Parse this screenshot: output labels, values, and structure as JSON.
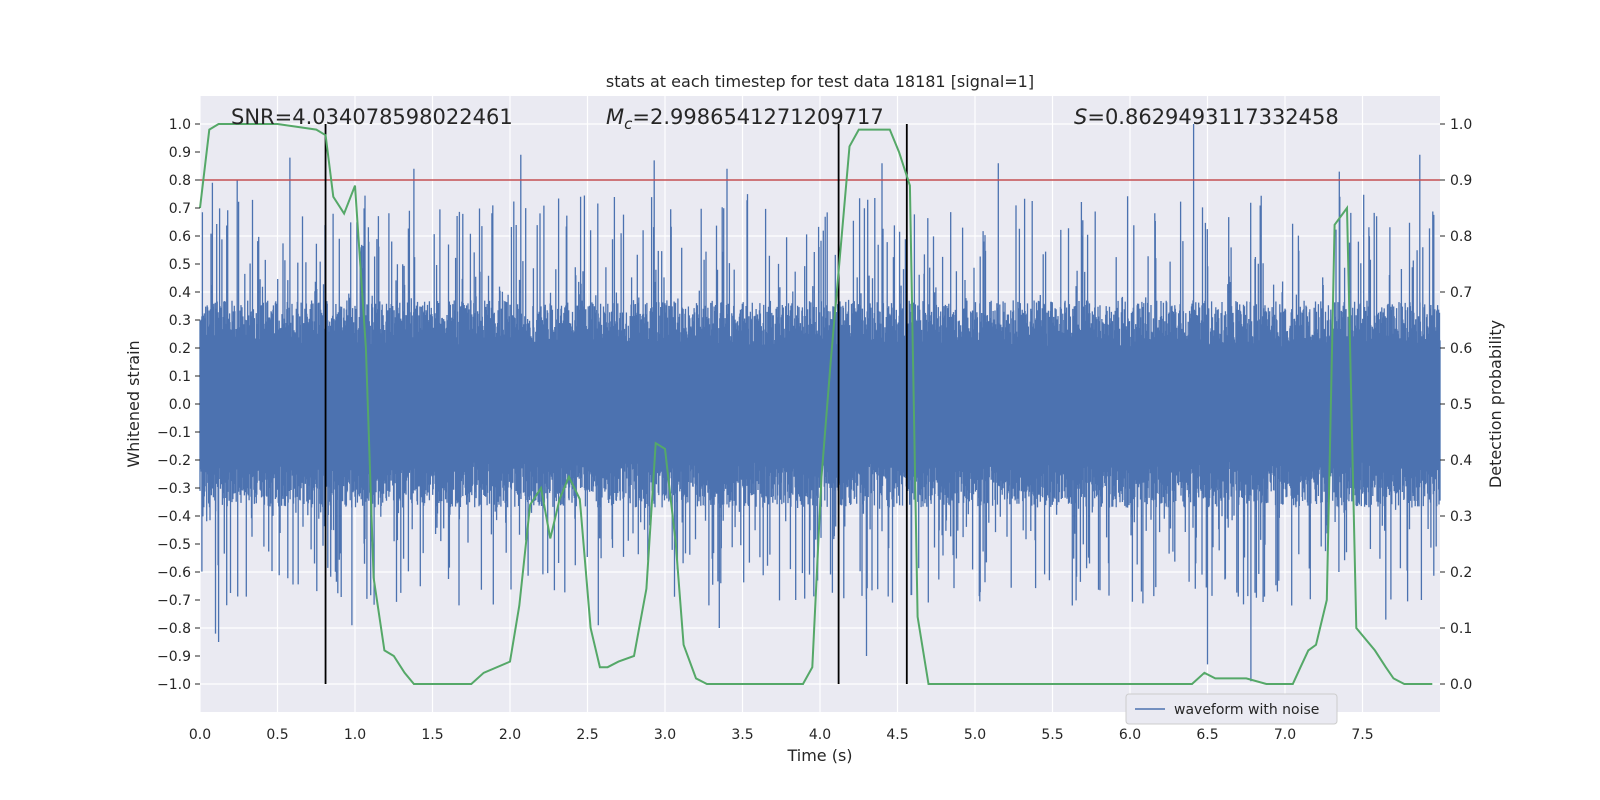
{
  "chart_data": {
    "type": "line",
    "title": "stats at each timestep for test data 18181 [signal=1]",
    "xlabel": "Time (s)",
    "ylabel": "Whitened strain",
    "y2label": "Detection probability",
    "xlim": [
      0.0,
      8.0
    ],
    "ylim": [
      -1.1,
      1.1
    ],
    "y2lim": [
      -0.05,
      1.05
    ],
    "xticks": [
      0.0,
      0.5,
      1.0,
      1.5,
      2.0,
      2.5,
      3.0,
      3.5,
      4.0,
      4.5,
      5.0,
      5.5,
      6.0,
      6.5,
      7.0,
      7.5
    ],
    "yticks": [
      1.0,
      0.9,
      0.8,
      0.7,
      0.6,
      0.5,
      0.4,
      0.3,
      0.2,
      0.1,
      0.0,
      -0.1,
      -0.2,
      -0.3,
      -0.4,
      -0.5,
      -0.6,
      -0.7,
      -0.8,
      -0.9,
      -1.0
    ],
    "y2ticks": [
      1.0,
      0.9,
      0.8,
      0.7,
      0.6,
      0.5,
      0.4,
      0.3,
      0.2,
      0.1,
      0.0
    ],
    "grid": true,
    "legend_position": "bottom-right",
    "annotations": {
      "snr": "SNR=4.034078598022461",
      "mc_symbol": "M",
      "mc_sub": "c",
      "mc_value": "=2.9986541271209717",
      "s_symbol": "S",
      "s_value": "=0.8629493117332458"
    },
    "threshold": {
      "axis": "left",
      "value": 0.8,
      "color": "#c44e52"
    },
    "vertical_lines": [
      0.81,
      4.12,
      4.56
    ],
    "series": [
      {
        "name": "waveform with noise",
        "axis": "left",
        "color": "#4c72b0",
        "kind": "noise_waveform",
        "typical_envelope": [
          -0.37,
          0.37
        ],
        "notable_peaks": [
          {
            "x": 0.58,
            "y": 0.88
          },
          {
            "x": 0.08,
            "y": 0.79
          },
          {
            "x": 0.24,
            "y": 0.8
          },
          {
            "x": 1.38,
            "y": 0.84
          },
          {
            "x": 2.07,
            "y": 0.89
          },
          {
            "x": 2.93,
            "y": 0.87
          },
          {
            "x": 3.4,
            "y": 0.84
          },
          {
            "x": 4.4,
            "y": 0.86
          },
          {
            "x": 5.15,
            "y": 0.86
          },
          {
            "x": 6.41,
            "y": 1.0
          },
          {
            "x": 7.87,
            "y": 0.89
          },
          {
            "x": 7.35,
            "y": 0.83
          },
          {
            "x": 0.1,
            "y": -0.82
          },
          {
            "x": 0.12,
            "y": -0.85
          },
          {
            "x": 0.98,
            "y": -0.79
          },
          {
            "x": 2.57,
            "y": -0.79
          },
          {
            "x": 3.35,
            "y": -0.8
          },
          {
            "x": 4.3,
            "y": -0.9
          },
          {
            "x": 6.5,
            "y": -0.93
          },
          {
            "x": 6.78,
            "y": -0.99
          },
          {
            "x": 7.65,
            "y": -0.77
          }
        ]
      },
      {
        "name": "",
        "axis": "right",
        "color": "#55a868",
        "x": [
          0.0,
          0.06,
          0.12,
          0.25,
          0.5,
          0.75,
          0.81,
          0.86,
          0.93,
          1.0,
          1.07,
          1.12,
          1.19,
          1.25,
          1.32,
          1.38,
          1.5,
          1.75,
          1.83,
          2.0,
          2.06,
          2.13,
          2.2,
          2.26,
          2.32,
          2.38,
          2.45,
          2.52,
          2.58,
          2.63,
          2.7,
          2.8,
          2.88,
          2.94,
          3.0,
          3.07,
          3.12,
          3.2,
          3.27,
          3.5,
          3.75,
          3.89,
          3.95,
          4.01,
          4.07,
          4.14,
          4.19,
          4.25,
          4.32,
          4.37,
          4.45,
          4.51,
          4.58,
          4.63,
          4.7,
          4.8,
          4.85,
          5.0,
          5.5,
          5.64,
          5.75,
          6.0,
          6.4,
          6.48,
          6.55,
          6.6,
          6.75,
          6.88,
          7.05,
          7.1,
          7.15,
          7.2,
          7.27,
          7.32,
          7.4,
          7.46,
          7.58,
          7.65,
          7.7,
          7.77,
          7.87,
          7.95
        ],
        "values": [
          0.85,
          0.99,
          1.0,
          1.0,
          1.0,
          0.99,
          0.98,
          0.87,
          0.84,
          0.89,
          0.6,
          0.19,
          0.06,
          0.05,
          0.02,
          0.0,
          0.0,
          0.0,
          0.02,
          0.04,
          0.14,
          0.32,
          0.35,
          0.26,
          0.33,
          0.37,
          0.33,
          0.1,
          0.03,
          0.03,
          0.04,
          0.05,
          0.17,
          0.43,
          0.42,
          0.25,
          0.07,
          0.01,
          0.0,
          0.0,
          0.0,
          0.0,
          0.03,
          0.37,
          0.58,
          0.8,
          0.96,
          0.99,
          0.99,
          0.99,
          0.99,
          0.95,
          0.89,
          0.12,
          0.0,
          0.0,
          0.0,
          0.0,
          0.0,
          0.0,
          0.0,
          0.0,
          0.0,
          0.02,
          0.01,
          0.01,
          0.01,
          0.0,
          0.0,
          0.03,
          0.06,
          0.07,
          0.15,
          0.82,
          0.85,
          0.1,
          0.06,
          0.03,
          0.01,
          0.0,
          0.0,
          0.0
        ]
      }
    ]
  }
}
